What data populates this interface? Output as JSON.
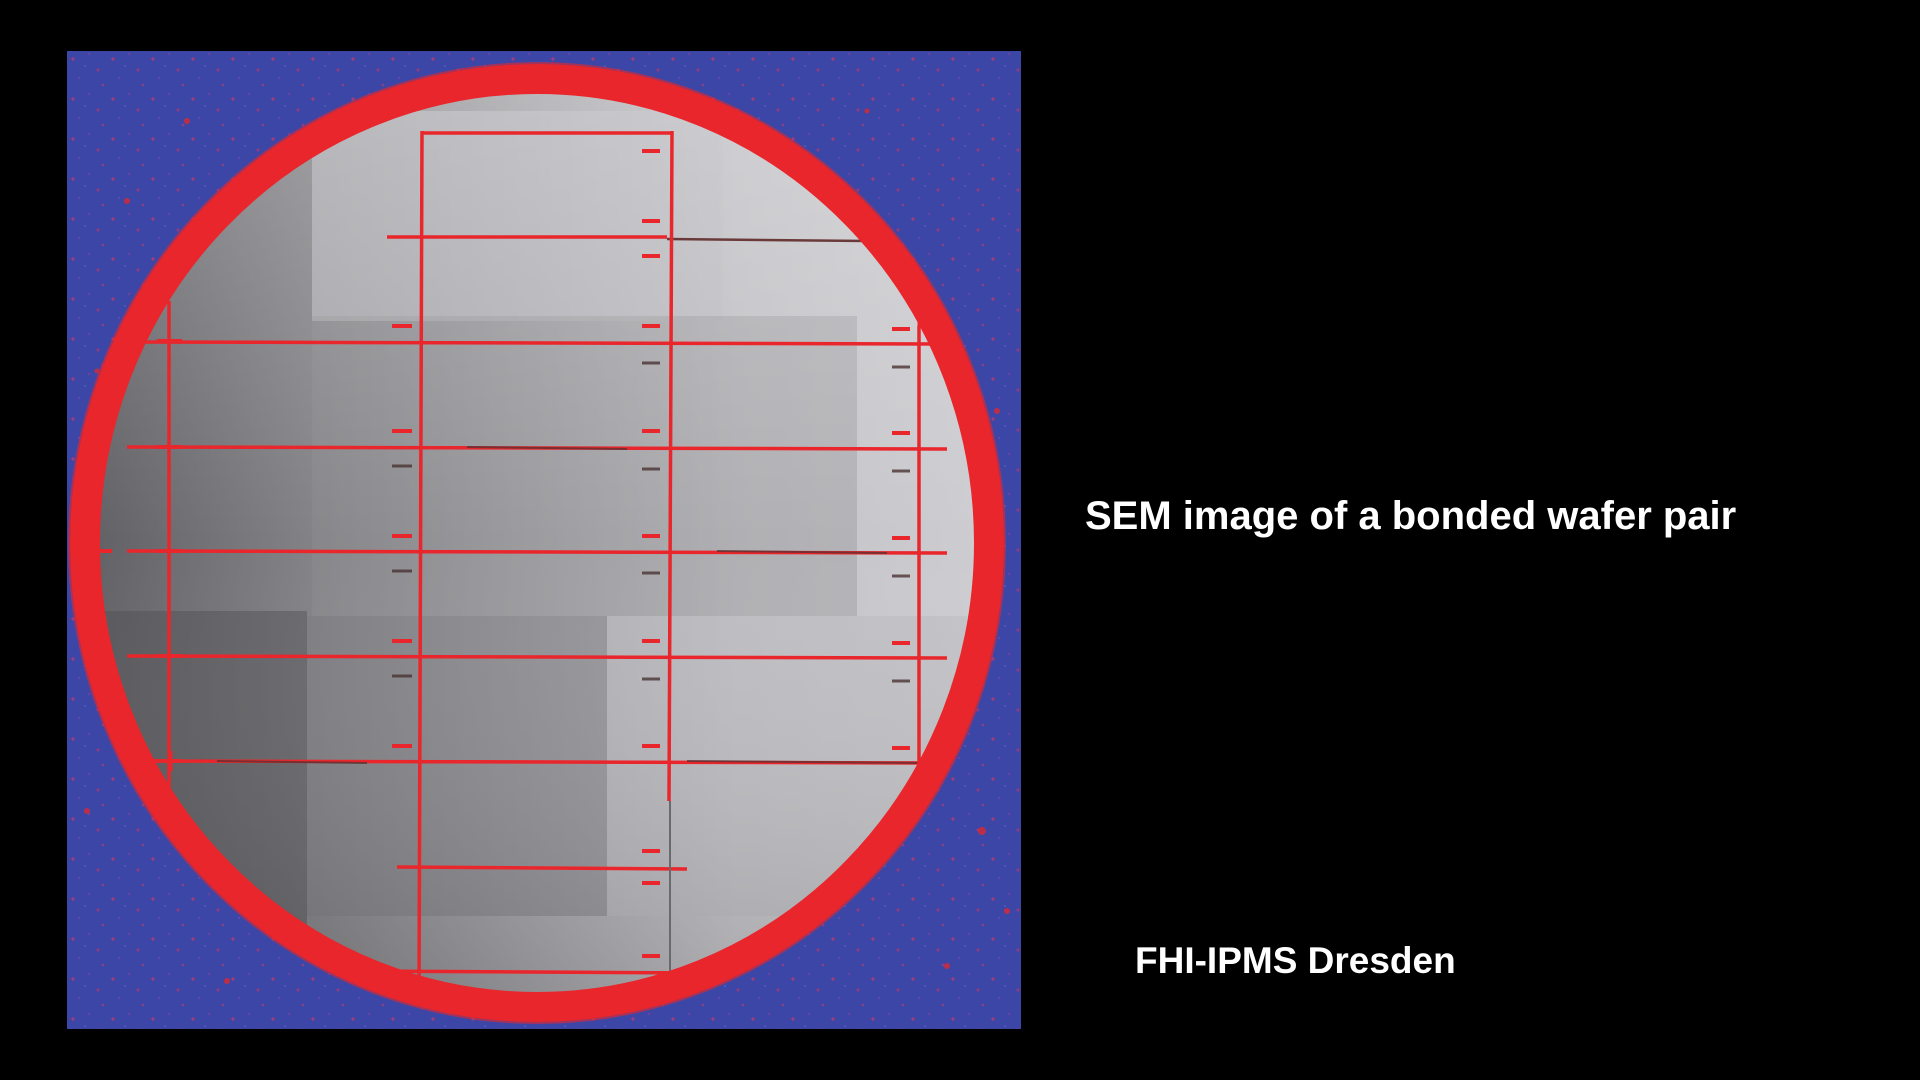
{
  "slide": {
    "caption": "SEM image of a bonded wafer pair",
    "credit": "FHI-IPMS Dresden"
  },
  "figure": {
    "description_icon": "wafer-sem-image",
    "colors": {
      "background": "#3a47a8",
      "ring": "#e8262b",
      "wafer_light": "#c4c4c8",
      "wafer_dark": "#6e6e72",
      "grid_lines": "#e8262b"
    }
  }
}
